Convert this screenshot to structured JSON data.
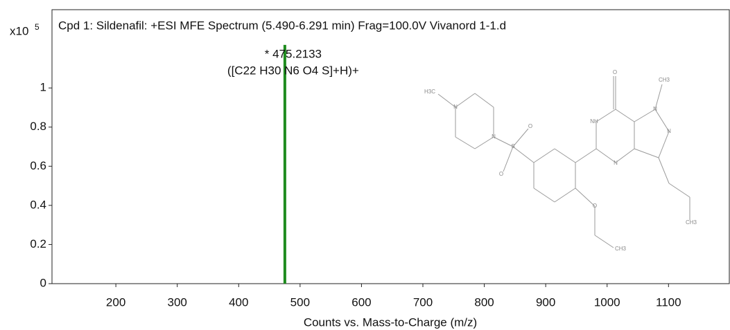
{
  "chart_data": {
    "type": "spectrum",
    "title": "Cpd 1: Sildenafil: +ESI MFE Spectrum (5.490-6.291 min) Frag=100.0V Vivanord 1-1.d",
    "x_label": "Counts vs. Mass-to-Charge (m/z)",
    "y_multiplier": {
      "base": "x10",
      "exponent": "5"
    },
    "x": [
      475.2133
    ],
    "series": [
      {
        "color": "#1e8c1e",
        "values": [
          1.22
        ]
      }
    ],
    "peak_labels": [
      "* 475.2133",
      "([C22 H30 N6 O4 S]+H)+"
    ],
    "xlim": [
      96,
      1199
    ],
    "xticks": [
      200,
      300,
      400,
      500,
      600,
      700,
      800,
      900,
      1000,
      1100
    ],
    "ylim": [
      0,
      1.4
    ],
    "yticks": [
      0,
      0.2,
      0.4,
      0.6,
      0.8,
      1
    ],
    "structure_labels": [
      "H3C",
      "N",
      "N",
      "S",
      "O",
      "O",
      "O",
      "CH3",
      "NH",
      "O",
      "N",
      "N",
      "N",
      "CH3",
      "CH3"
    ]
  }
}
